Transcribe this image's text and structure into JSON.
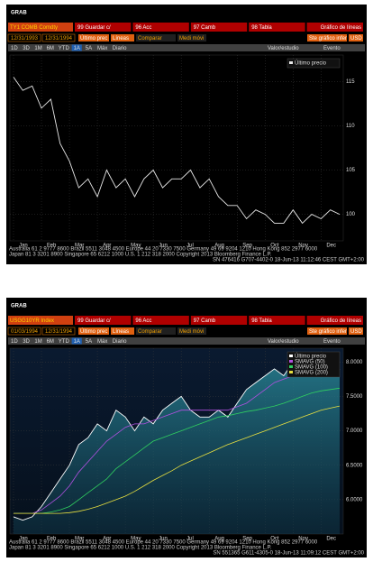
{
  "screens": [
    {
      "grab": "GRAB",
      "ticker": "TY1 COMB Comdty",
      "toolbar": [
        "99 Guardar c/",
        "96 Acc",
        "97 Camb",
        "98 Tabla",
        "Gráfico de líneas"
      ],
      "start_date": "12/31/1993",
      "end_date": "12/31/1994",
      "controls": [
        "Último prec",
        "Líneas",
        "Comparar",
        "Medi móvi",
        "Ste gráfico infer",
        "USD"
      ],
      "tabs": [
        "1D",
        "3D",
        "1M",
        "6M",
        "YTD",
        "1A",
        "5A",
        "Máx",
        "Diario"
      ],
      "tools": [
        "Valor/estudio",
        "Evento"
      ],
      "footer": [
        "Australia 61 2 9777 8600 Brazil 5511 3048 4500 Europe 44 20 7330 7500 Germany 49 69 9204 1210 Hong Kong 852 2977 6000",
        "Japan 81 3 3201 8900   Singapore 65 6212 1000   U.S. 1 212 318 2000   Copyright 2013 Bloomberg Finance L.P.",
        "SN 476416 G707-4402-0 18-Jun-13 11:12:46 CEST GMT+2:00"
      ]
    },
    {
      "grab": "GRAB",
      "ticker": "USGG10YR Index",
      "toolbar": [
        "99 Guardar c/",
        "96 Acc",
        "97 Camb",
        "98 Tabla",
        "Gráfico de líneas"
      ],
      "start_date": "01/03/1994",
      "end_date": "12/31/1994",
      "controls": [
        "Último prec",
        "Líneas",
        "Comparar",
        "Medi móvi",
        "Ste gráfico infer",
        "USD"
      ],
      "tabs": [
        "1D",
        "3D",
        "1M",
        "6M",
        "YTD",
        "1A",
        "5A",
        "Máx",
        "Diario"
      ],
      "tools": [
        "Valor/estudio",
        "Evento"
      ],
      "footer": [
        "Australia 61 2 9777 8600 Brazil 5511 3048 4500 Europe 44 20 7330 7500 Germany 49 69 9204 1210 Hong Kong 852 2977 6000",
        "Japan 81 3 3201 8900   Singapore 65 6212 1000   U.S. 1 212 318 2000   Copyright 2013 Bloomberg Finance L.P.",
        "SN 551365 G611-4305-0 18-Jun-13 11:09:12 CEST GMT+2:00"
      ]
    }
  ],
  "chart_data": [
    {
      "type": "line",
      "grid": true,
      "categories": [
        "Jan",
        null,
        null,
        "Feb",
        null,
        null,
        "Mar",
        null,
        null,
        "Apr",
        null,
        null,
        "May",
        null,
        null,
        "Jun",
        null,
        null,
        "Jul",
        null,
        null,
        "Aug",
        null,
        null,
        "Sep",
        null,
        null,
        "Oct",
        null,
        null,
        "Nov",
        null,
        null,
        "Dec",
        null,
        null
      ],
      "ylim": [
        97,
        118
      ],
      "yticks": [
        100,
        105,
        110,
        115
      ],
      "series": [
        {
          "name": "Último precio",
          "color": "#e8e8e8",
          "values": [
            115.5,
            114,
            114.5,
            112,
            113,
            108,
            106,
            103,
            104,
            102,
            105,
            103,
            104,
            102,
            104,
            105,
            103,
            104,
            104,
            105,
            103,
            104,
            102,
            101,
            101,
            99.5,
            100.5,
            100,
            99,
            99,
            100.5,
            99,
            100,
            99.5,
            100.5,
            100
          ]
        }
      ]
    },
    {
      "type": "line",
      "grid": true,
      "area": true,
      "categories": [
        "Jan",
        null,
        null,
        "Feb",
        null,
        null,
        "Mar",
        null,
        null,
        "Apr",
        null,
        null,
        "May",
        null,
        null,
        "Jun",
        null,
        null,
        "Jul",
        null,
        null,
        "Aug",
        null,
        null,
        "Sep",
        null,
        null,
        "Oct",
        null,
        null,
        "Nov",
        null,
        null,
        "Dec",
        null,
        null
      ],
      "ylim": [
        5.5,
        8.2
      ],
      "yticks": [
        {
          "value": 6,
          "label": "6.0000"
        },
        {
          "value": 6.5,
          "label": "6.5000"
        },
        {
          "value": 7,
          "label": "7.0000"
        },
        {
          "value": 7.5,
          "label": "7.5000"
        },
        {
          "value": 8,
          "label": "8.0000"
        }
      ],
      "series": [
        {
          "name": "Último precio",
          "color": "#ffffff",
          "values": [
            5.75,
            5.7,
            5.75,
            5.9,
            6.1,
            6.3,
            6.5,
            6.8,
            6.9,
            7.1,
            7.0,
            7.3,
            7.2,
            7.0,
            7.2,
            7.1,
            7.3,
            7.4,
            7.5,
            7.3,
            7.2,
            7.2,
            7.3,
            7.2,
            7.4,
            7.6,
            7.7,
            7.8,
            7.9,
            7.8,
            8.0,
            7.9,
            7.8,
            7.8,
            7.8,
            7.9
          ]
        },
        {
          "name": "SMAVG (50)",
          "color": "#b050e0",
          "values": [
            5.8,
            5.8,
            5.8,
            5.85,
            5.95,
            6.05,
            6.2,
            6.4,
            6.55,
            6.7,
            6.85,
            6.95,
            7.05,
            7.1,
            7.1,
            7.15,
            7.2,
            7.25,
            7.3,
            7.3,
            7.3,
            7.3,
            7.3,
            7.3,
            7.35,
            7.4,
            7.5,
            7.6,
            7.7,
            7.75,
            7.8,
            7.85,
            7.85,
            7.85,
            7.85,
            7.85
          ]
        },
        {
          "name": "SMAVG (100)",
          "color": "#30d060",
          "values": [
            5.8,
            5.8,
            5.8,
            5.8,
            5.82,
            5.85,
            5.9,
            6.0,
            6.1,
            6.2,
            6.3,
            6.45,
            6.55,
            6.65,
            6.75,
            6.85,
            6.9,
            6.95,
            7.0,
            7.05,
            7.1,
            7.15,
            7.2,
            7.22,
            7.25,
            7.28,
            7.3,
            7.33,
            7.36,
            7.4,
            7.45,
            7.5,
            7.55,
            7.58,
            7.6,
            7.62
          ]
        },
        {
          "name": "SMAVG (200)",
          "color": "#e8e040",
          "values": [
            5.8,
            5.8,
            5.8,
            5.8,
            5.8,
            5.8,
            5.81,
            5.83,
            5.86,
            5.9,
            5.95,
            6.0,
            6.05,
            6.12,
            6.2,
            6.28,
            6.35,
            6.42,
            6.5,
            6.56,
            6.62,
            6.68,
            6.74,
            6.8,
            6.85,
            6.9,
            6.95,
            7.0,
            7.05,
            7.1,
            7.15,
            7.2,
            7.25,
            7.3,
            7.33,
            7.36
          ]
        }
      ]
    }
  ]
}
